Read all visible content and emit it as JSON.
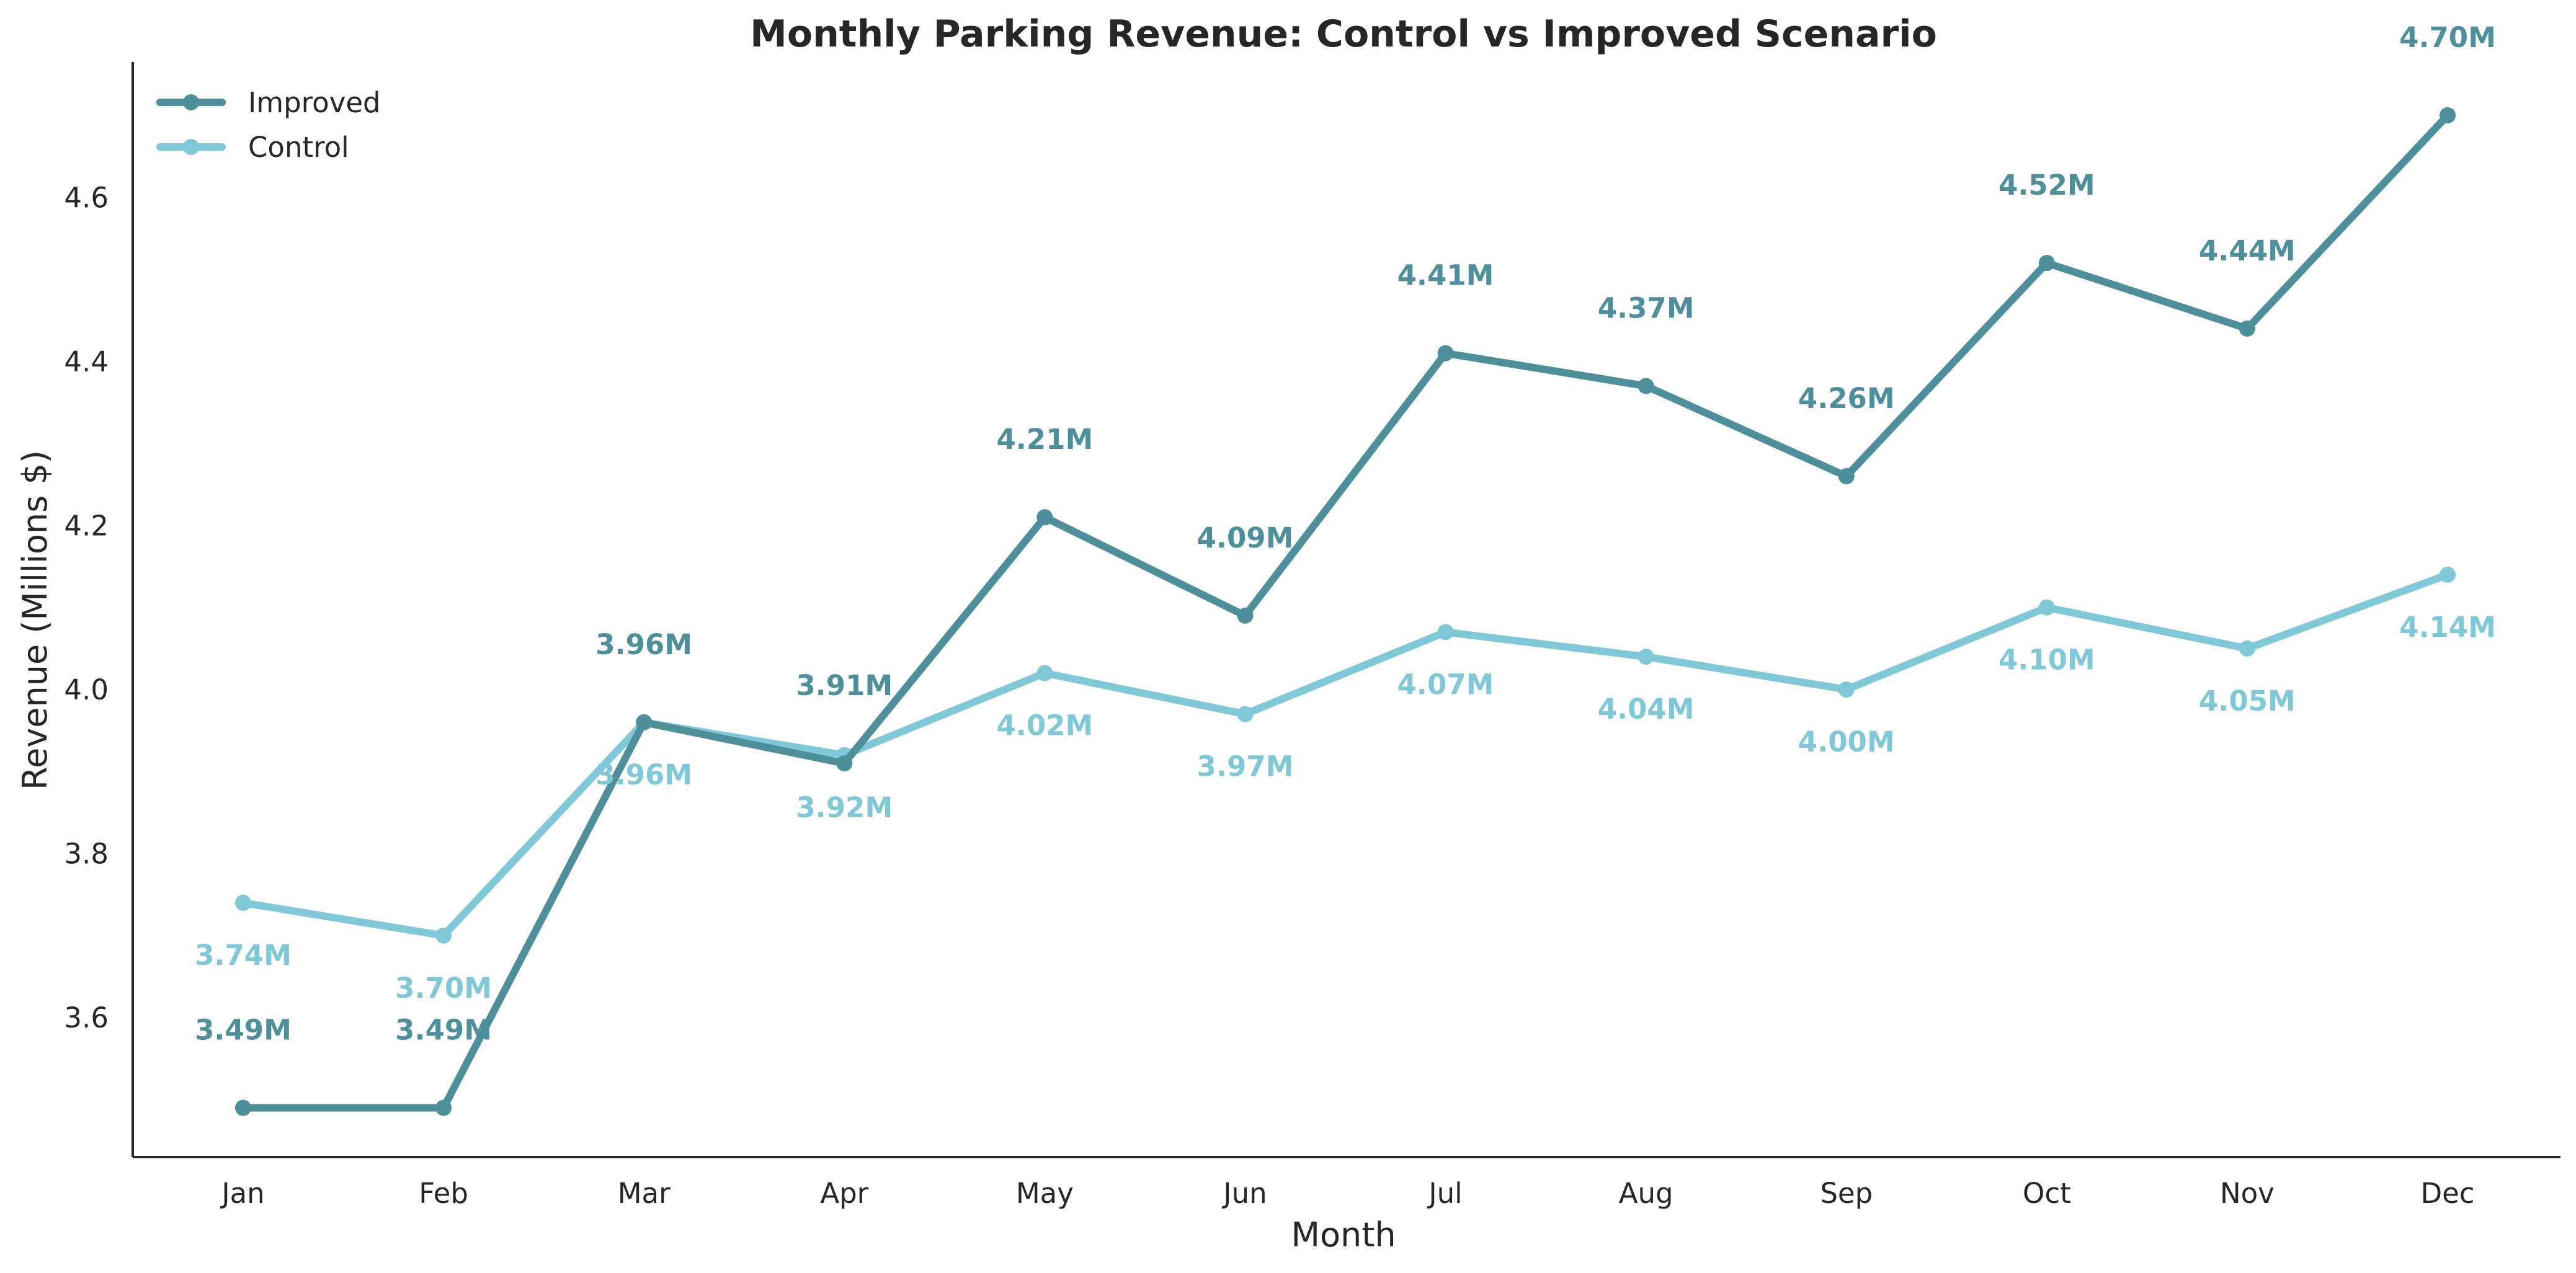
{
  "colors": {
    "improved": "#4e8f9c",
    "control": "#7ec8d8",
    "axis": "#262626",
    "background": "#ffffff"
  },
  "chart_data": {
    "type": "line",
    "title": "Monthly Parking Revenue: Control vs Improved Scenario",
    "xlabel": "Month",
    "ylabel": "Revenue (Millions $)",
    "categories": [
      "Jan",
      "Feb",
      "Mar",
      "Apr",
      "May",
      "Jun",
      "Jul",
      "Aug",
      "Sep",
      "Oct",
      "Nov",
      "Dec"
    ],
    "ylim": [
      3.43,
      4.765
    ],
    "yticks": [
      3.6,
      3.8,
      4.0,
      4.2,
      4.4,
      4.6
    ],
    "ytick_labels": [
      "3.6",
      "3.8",
      "4.0",
      "4.2",
      "4.4",
      "4.6"
    ],
    "grid": false,
    "legend_position": "top-left",
    "series": [
      {
        "name": "Improved",
        "color_key": "improved",
        "label_position": "above",
        "values": [
          3.49,
          3.49,
          3.96,
          3.91,
          4.21,
          4.09,
          4.41,
          4.37,
          4.26,
          4.52,
          4.44,
          4.7
        ],
        "labels": [
          "3.49M",
          "3.49M",
          "3.96M",
          "3.91M",
          "4.21M",
          "4.09M",
          "4.41M",
          "4.37M",
          "4.26M",
          "4.52M",
          "4.44M",
          "4.70M"
        ]
      },
      {
        "name": "Control",
        "color_key": "control",
        "label_position": "below",
        "values": [
          3.74,
          3.7,
          3.96,
          3.92,
          4.02,
          3.97,
          4.07,
          4.04,
          4.0,
          4.1,
          4.05,
          4.14
        ],
        "labels": [
          "3.74M",
          "3.70M",
          "3.96M",
          "3.92M",
          "4.02M",
          "3.97M",
          "4.07M",
          "4.04M",
          "4.00M",
          "4.10M",
          "4.05M",
          "4.14M"
        ]
      }
    ]
  }
}
